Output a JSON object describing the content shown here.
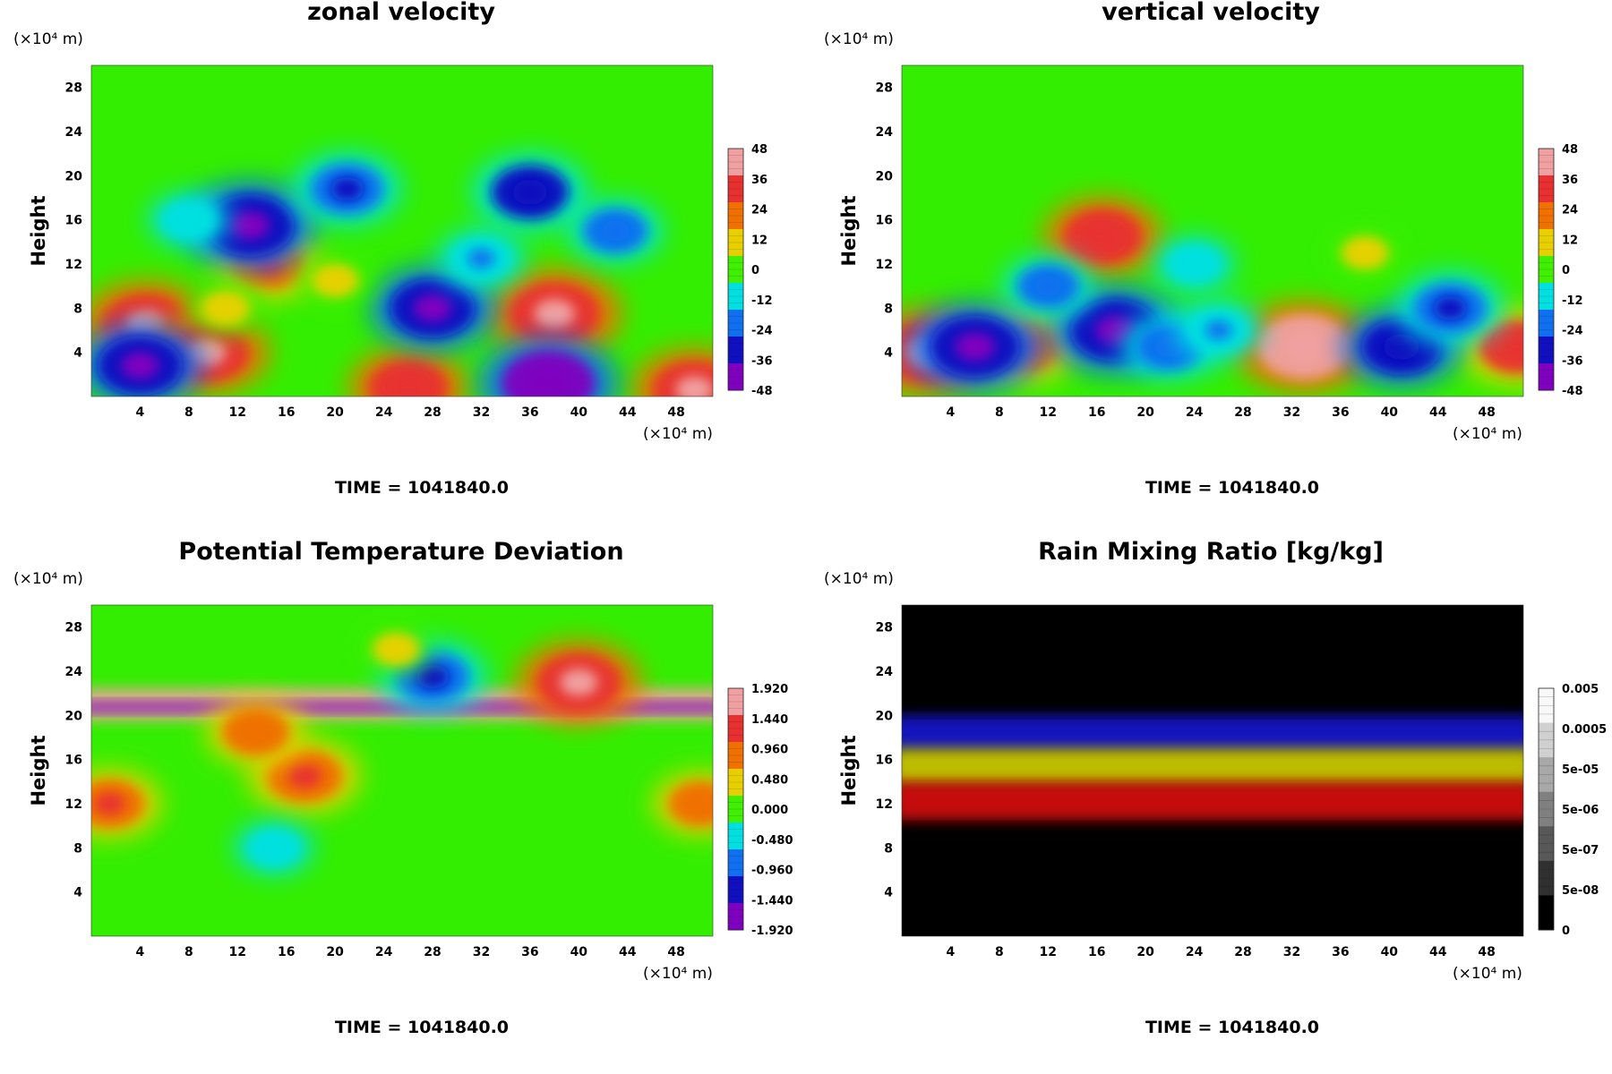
{
  "chart_data": [
    {
      "type": "heatmap",
      "title": "zonal velocity",
      "ylabel": "Height",
      "y_unit": "(×10⁴ m)",
      "x_unit": "(×10⁴ m)",
      "x_ticks": [
        "4",
        "8",
        "12",
        "16",
        "20",
        "24",
        "28",
        "32",
        "36",
        "40",
        "44",
        "48"
      ],
      "y_ticks": [
        "4",
        "8",
        "12",
        "16",
        "20",
        "24",
        "28"
      ],
      "xlim": [
        0,
        51
      ],
      "ylim": [
        0,
        30
      ],
      "colorbar": {
        "ticks": [
          "48",
          "36",
          "24",
          "12",
          "0",
          "-12",
          "-24",
          "-36",
          "-48"
        ],
        "range": [
          -48,
          48
        ],
        "colors": [
          "#f0a0a0",
          "#e83030",
          "#f07000",
          "#e8d000",
          "#40f000",
          "#00e0e0",
          "#1070f0",
          "#1010c0",
          "#8000c0"
        ]
      },
      "background_color": "#33ee00",
      "features": [
        {
          "x": 4.5,
          "y": 6.5,
          "value": 44
        },
        {
          "x": 9.5,
          "y": 4,
          "value": 40
        },
        {
          "x": 38,
          "y": 7.5,
          "value": 46
        },
        {
          "x": 26,
          "y": 0.8,
          "value": 36
        },
        {
          "x": 14.5,
          "y": 12,
          "value": 30
        },
        {
          "x": 49.5,
          "y": 0.6,
          "value": 40
        },
        {
          "x": 28,
          "y": 8,
          "value": -40
        },
        {
          "x": 13,
          "y": 15.5,
          "value": -44
        },
        {
          "x": 37.5,
          "y": 1.2,
          "value": -48
        },
        {
          "x": 36,
          "y": 18.5,
          "value": -34
        },
        {
          "x": 4,
          "y": 2.8,
          "value": -40
        },
        {
          "x": 21,
          "y": 18.8,
          "value": -30
        },
        {
          "x": 32,
          "y": 12.5,
          "value": -18
        },
        {
          "x": 43,
          "y": 15,
          "value": -22
        },
        {
          "x": 11,
          "y": 8,
          "value": 10
        },
        {
          "x": 8,
          "y": 16,
          "value": -14
        },
        {
          "x": 20,
          "y": 10.5,
          "value": 8
        }
      ],
      "time_label": "TIME = 1041840.0"
    },
    {
      "type": "heatmap",
      "title": "vertical velocity",
      "ylabel": "Height",
      "y_unit": "(×10⁴ m)",
      "x_unit": "(×10⁴ m)",
      "x_ticks": [
        "4",
        "8",
        "12",
        "16",
        "20",
        "24",
        "28",
        "32",
        "36",
        "40",
        "44",
        "48"
      ],
      "y_ticks": [
        "4",
        "8",
        "12",
        "16",
        "20",
        "24",
        "28"
      ],
      "xlim": [
        0,
        51
      ],
      "ylim": [
        0,
        30
      ],
      "colorbar": {
        "ticks": [
          "48",
          "36",
          "24",
          "12",
          "0",
          "-12",
          "-24",
          "-36",
          "-48"
        ],
        "range": [
          -48,
          48
        ],
        "colors": [
          "#f0a0a0",
          "#e83030",
          "#f07000",
          "#e8d000",
          "#40f000",
          "#00e0e0",
          "#1070f0",
          "#1010c0",
          "#8000c0"
        ]
      },
      "background_color": "#33ee00",
      "features": [
        {
          "x": 33,
          "y": 4.5,
          "value": 48
        },
        {
          "x": 2,
          "y": 4,
          "value": 44
        },
        {
          "x": 16.5,
          "y": 14.5,
          "value": 36
        },
        {
          "x": 10,
          "y": 4.5,
          "value": 30
        },
        {
          "x": 50.5,
          "y": 4.5,
          "value": 34
        },
        {
          "x": 41,
          "y": 4.5,
          "value": -36
        },
        {
          "x": 6,
          "y": 4.5,
          "value": -44
        },
        {
          "x": 17.5,
          "y": 6,
          "value": -44
        },
        {
          "x": 22,
          "y": 4.5,
          "value": -24
        },
        {
          "x": 12,
          "y": 10,
          "value": -20
        },
        {
          "x": 24,
          "y": 12,
          "value": -14
        },
        {
          "x": 45,
          "y": 8,
          "value": -30
        },
        {
          "x": 26,
          "y": 6,
          "value": -18
        },
        {
          "x": 38,
          "y": 13,
          "value": 8
        }
      ],
      "time_label": "TIME = 1041840.0"
    },
    {
      "type": "heatmap",
      "title": "Potential Temperature Deviation",
      "ylabel": "Height",
      "y_unit": "(×10⁴ m)",
      "x_unit": "(×10⁴ m)",
      "x_ticks": [
        "4",
        "8",
        "12",
        "16",
        "20",
        "24",
        "28",
        "32",
        "36",
        "40",
        "44",
        "48"
      ],
      "y_ticks": [
        "4",
        "8",
        "12",
        "16",
        "20",
        "24",
        "28"
      ],
      "xlim": [
        0,
        51
      ],
      "ylim": [
        0,
        30
      ],
      "colorbar": {
        "ticks": [
          "1.920",
          "1.440",
          "0.960",
          "0.480",
          "0.000",
          "-0.480",
          "-0.960",
          "-1.440",
          "-1.920"
        ],
        "range": [
          -1.92,
          1.92
        ],
        "colors": [
          "#f0a0a0",
          "#e83030",
          "#f07000",
          "#e8d000",
          "#40f000",
          "#00e0e0",
          "#1070f0",
          "#1010c0",
          "#8000c0"
        ]
      },
      "background_color": "#33ee00",
      "features": [
        {
          "x": 40,
          "y": 23,
          "value": 1.6
        },
        {
          "x": 17.5,
          "y": 14.5,
          "value": 1.3
        },
        {
          "x": 13.5,
          "y": 18.5,
          "value": 1.0
        },
        {
          "x": 1.5,
          "y": 12,
          "value": 1.1
        },
        {
          "x": 50,
          "y": 12,
          "value": 0.9
        },
        {
          "x": 28,
          "y": 23.5,
          "value": -1.2
        },
        {
          "x": 15,
          "y": 8,
          "value": -0.5
        },
        {
          "x": 25,
          "y": 26,
          "value": 0.3
        }
      ],
      "bands": [
        {
          "y_from": 19.5,
          "y_to": 22.5,
          "description_value": 1.92
        },
        {
          "y_from": 20.3,
          "y_to": 21.2,
          "description_value": -1.92
        }
      ],
      "time_label": "TIME = 1041840.0"
    },
    {
      "type": "heatmap",
      "title": "Rain Mixing Ratio [kg/kg]",
      "ylabel": "Height",
      "y_unit": "(×10⁴ m)",
      "x_unit": "(×10⁴ m)",
      "x_ticks": [
        "4",
        "8",
        "12",
        "16",
        "20",
        "24",
        "28",
        "32",
        "36",
        "40",
        "44",
        "48"
      ],
      "y_ticks": [
        "4",
        "8",
        "12",
        "16",
        "20",
        "24",
        "28"
      ],
      "xlim": [
        0,
        51
      ],
      "ylim": [
        0,
        30
      ],
      "colorbar": {
        "ticks": [
          "0.005",
          "0.0005",
          "5e-05",
          "5e-06",
          "5e-07",
          "5e-08",
          "0"
        ],
        "colors": [
          "#f8f8f8",
          "#d0d0d0",
          "#a8a8a8",
          "#808080",
          "#585858",
          "#303030",
          "#000000"
        ]
      },
      "background_color": "#000000",
      "layers": [
        {
          "name": "blue",
          "y_from": 16.5,
          "y_to": 20,
          "color": "#1818c8"
        },
        {
          "name": "yellow",
          "y_from": 13.5,
          "y_to": 17,
          "color": "#c8c800"
        },
        {
          "name": "red",
          "y_from": 10.5,
          "y_to": 14,
          "color": "#d01010"
        }
      ],
      "time_label": "TIME = 1041840.0"
    }
  ]
}
